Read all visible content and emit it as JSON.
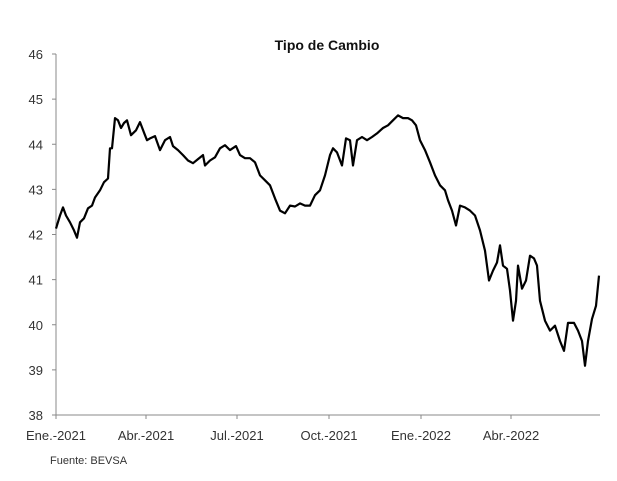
{
  "chart_data": {
    "type": "line",
    "title": "Tipo de Cambio",
    "source": "Fuente: BEVSA",
    "xlabel": "",
    "ylabel": "",
    "ylim": [
      38,
      46
    ],
    "xlim": [
      "2021-01-01",
      "2022-06-30"
    ],
    "grid": false,
    "legend": "none",
    "line_color": "#000000",
    "y_ticks": [
      "38",
      "39",
      "40",
      "41",
      "42",
      "43",
      "44",
      "45",
      "46"
    ],
    "x_ticks": [
      {
        "date": "2021-01-01",
        "label": "Ene.-2021"
      },
      {
        "date": "2021-04-01",
        "label": "Abr.-2021"
      },
      {
        "date": "2021-07-01",
        "label": "Jul.-2021"
      },
      {
        "date": "2021-10-01",
        "label": "Oct.-2021"
      },
      {
        "date": "2022-01-01",
        "label": "Ene.-2022"
      },
      {
        "date": "2022-04-01",
        "label": "Abr.-2022"
      }
    ],
    "series": [
      {
        "x": [
          "2021-01-01",
          "2021-01-05",
          "2021-01-08",
          "2021-01-11",
          "2021-01-15",
          "2021-01-19",
          "2021-01-22",
          "2021-01-25",
          "2021-01-29",
          "2021-02-02",
          "2021-02-06",
          "2021-02-09",
          "2021-02-14",
          "2021-02-18",
          "2021-02-22",
          "2021-02-24",
          "2021-02-26",
          "2021-03-01",
          "2021-03-04",
          "2021-03-07",
          "2021-03-10",
          "2021-03-13",
          "2021-03-17",
          "2021-03-22",
          "2021-03-26",
          "2021-03-31",
          "2021-04-02",
          "2021-04-05",
          "2021-04-10",
          "2021-04-15",
          "2021-04-20",
          "2021-04-25",
          "2021-04-28",
          "2021-05-03",
          "2021-05-08",
          "2021-05-13",
          "2021-05-18",
          "2021-05-23",
          "2021-05-28",
          "2021-05-30",
          "2021-06-04",
          "2021-06-09",
          "2021-06-14",
          "2021-06-19",
          "2021-06-24",
          "2021-06-30",
          "2021-07-04",
          "2021-07-09",
          "2021-07-14",
          "2021-07-19",
          "2021-07-24",
          "2021-07-29",
          "2021-08-03",
          "2021-08-08",
          "2021-08-13",
          "2021-08-18",
          "2021-08-23",
          "2021-08-28",
          "2021-09-02",
          "2021-09-07",
          "2021-09-12",
          "2021-09-17",
          "2021-09-22",
          "2021-09-27",
          "2021-10-02",
          "2021-10-05",
          "2021-10-09",
          "2021-10-14",
          "2021-10-18",
          "2021-10-22",
          "2021-10-25",
          "2021-10-29",
          "2021-11-03",
          "2021-11-08",
          "2021-11-13",
          "2021-11-18",
          "2021-11-24",
          "2021-11-29",
          "2021-12-04",
          "2021-12-09",
          "2021-12-14",
          "2021-12-19",
          "2021-12-23",
          "2021-12-27",
          "2021-12-31",
          "2022-01-05",
          "2022-01-10",
          "2022-01-15",
          "2022-01-20",
          "2022-01-25",
          "2022-01-28",
          "2022-02-01",
          "2022-02-05",
          "2022-02-09",
          "2022-02-14",
          "2022-02-19",
          "2022-02-24",
          "2022-03-01",
          "2022-03-06",
          "2022-03-10",
          "2022-03-14",
          "2022-03-18",
          "2022-03-21",
          "2022-03-24",
          "2022-03-28",
          "2022-03-31",
          "2022-04-03",
          "2022-04-06",
          "2022-04-08",
          "2022-04-12",
          "2022-04-16",
          "2022-04-20",
          "2022-04-24",
          "2022-04-27",
          "2022-04-30",
          "2022-05-05",
          "2022-05-10",
          "2022-05-15",
          "2022-05-20",
          "2022-05-24",
          "2022-05-28",
          "2022-06-03",
          "2022-06-07",
          "2022-06-11",
          "2022-06-14",
          "2022-06-17",
          "2022-06-21",
          "2022-06-25",
          "2022-06-28"
        ],
        "y": [
          42.13,
          42.42,
          42.6,
          42.42,
          42.27,
          42.09,
          41.93,
          42.27,
          42.36,
          42.58,
          42.64,
          42.82,
          42.98,
          43.16,
          43.24,
          43.91,
          43.91,
          44.58,
          44.53,
          44.36,
          44.47,
          44.53,
          44.2,
          44.31,
          44.49,
          44.2,
          44.09,
          44.13,
          44.18,
          43.87,
          44.09,
          44.16,
          43.96,
          43.87,
          43.76,
          43.64,
          43.58,
          43.67,
          43.76,
          43.53,
          43.64,
          43.71,
          43.91,
          43.98,
          43.87,
          43.96,
          43.76,
          43.69,
          43.69,
          43.6,
          43.31,
          43.2,
          43.09,
          42.8,
          42.53,
          42.47,
          42.64,
          42.62,
          42.69,
          42.64,
          42.64,
          42.87,
          42.98,
          43.31,
          43.76,
          43.91,
          43.82,
          43.53,
          44.13,
          44.09,
          43.53,
          44.09,
          44.16,
          44.09,
          44.16,
          44.24,
          44.36,
          44.42,
          44.53,
          44.64,
          44.58,
          44.58,
          44.53,
          44.42,
          44.09,
          43.87,
          43.6,
          43.31,
          43.09,
          42.98,
          42.76,
          42.53,
          42.2,
          42.64,
          42.6,
          42.53,
          42.42,
          42.09,
          41.64,
          40.98,
          41.2,
          41.38,
          41.76,
          41.31,
          41.24,
          40.76,
          40.09,
          40.53,
          41.31,
          40.8,
          40.98,
          41.53,
          41.47,
          41.31,
          40.53,
          40.09,
          39.87,
          39.98,
          39.64,
          39.42,
          40.04,
          40.04,
          39.87,
          39.64,
          39.09,
          39.64,
          40.13,
          40.42,
          41.09
        ]
      }
    ]
  }
}
